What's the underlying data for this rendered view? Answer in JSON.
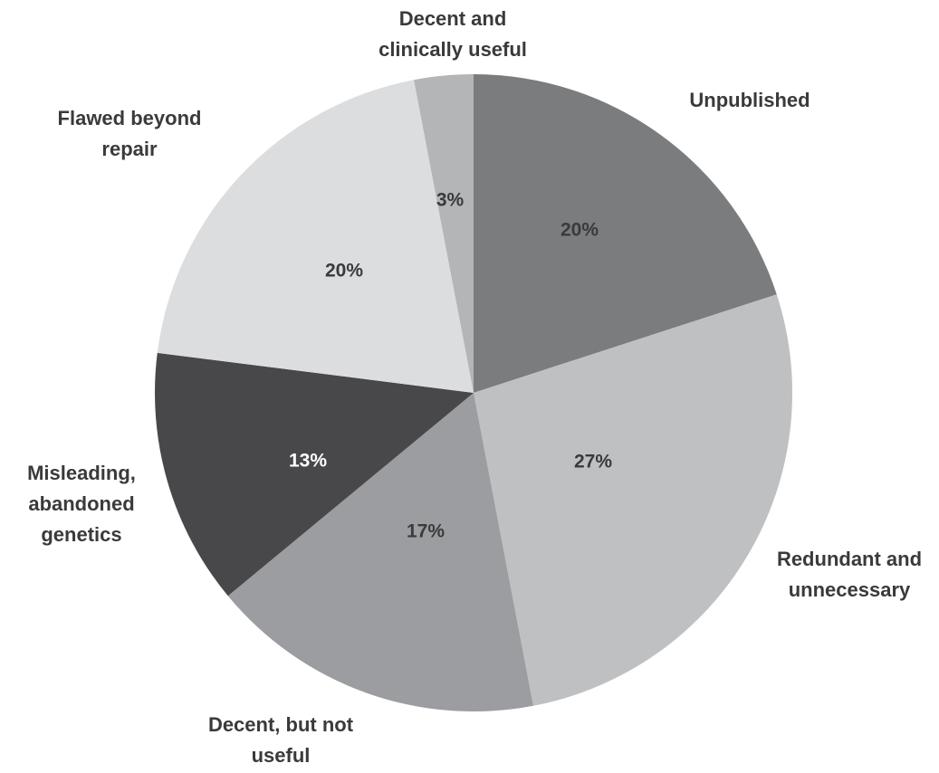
{
  "chart_data": {
    "type": "pie",
    "start": "12 o'clock",
    "direction": "clockwise",
    "legend": "none",
    "slices": [
      {
        "label_lines": [
          "Unpublished"
        ],
        "value": 20,
        "value_label": "20%",
        "color": "#7b7c7e",
        "label_color": "#3a3a3a"
      },
      {
        "label_lines": [
          "Redundant and",
          "unnecessary"
        ],
        "value": 27,
        "value_label": "27%",
        "color": "#bfc0c2",
        "label_color": "#3a3a3a"
      },
      {
        "label_lines": [
          "Decent, but not",
          "useful"
        ],
        "value": 17,
        "value_label": "17%",
        "color": "#9c9da0",
        "label_color": "#3a3a3a"
      },
      {
        "label_lines": [
          "Misleading,",
          "abandoned",
          "genetics"
        ],
        "value": 13,
        "value_label": "13%",
        "color": "#48484b",
        "label_color": "#ffffff"
      },
      {
        "label_lines": [
          "Flawed beyond",
          "repair"
        ],
        "value": 20,
        "value_label": "20%",
        "color": "#dcdddf",
        "label_color": "#3a3a3a"
      },
      {
        "label_lines": [
          "Decent and",
          "clinically useful"
        ],
        "value": 3,
        "value_label": "3%",
        "color": "#b4b5b7",
        "label_color": "#3a3a3a"
      }
    ]
  }
}
